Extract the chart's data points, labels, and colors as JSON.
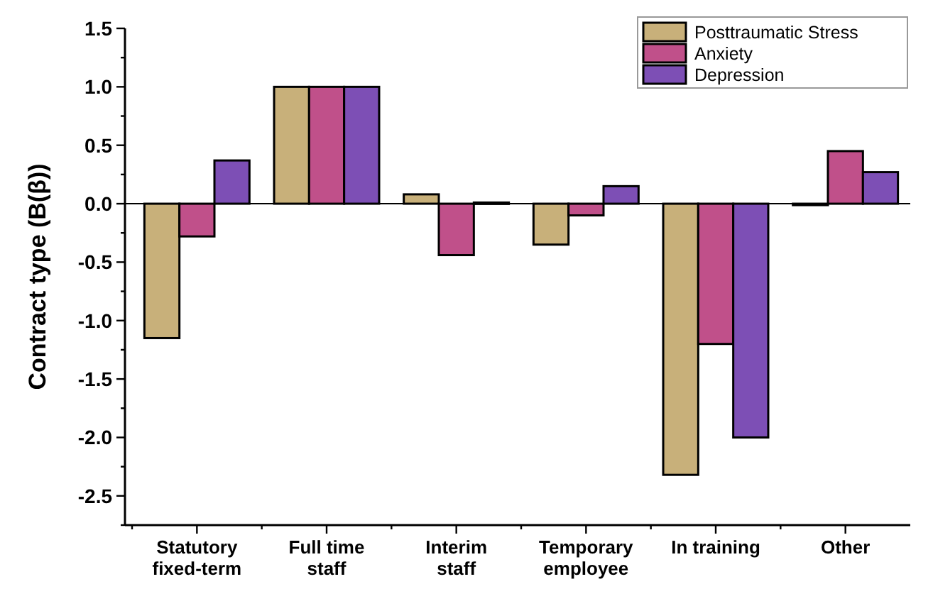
{
  "chart_data": {
    "type": "bar",
    "ylabel": "Contract type (B(β))",
    "categories": [
      "Statutory\nfixed-term",
      "Full time\nstaff",
      "Interim\nstaff",
      "Temporary\nemployee",
      "In training",
      "Other"
    ],
    "series": [
      {
        "name": "Posttraumatic Stress",
        "color": "#c8b07a",
        "values": [
          -1.15,
          1,
          0.08,
          -0.35,
          -2.32,
          -0.01
        ]
      },
      {
        "name": "Anxiety",
        "color": "#c0508a",
        "values": [
          -0.28,
          1,
          -0.44,
          -0.1,
          -1.2,
          0.45
        ]
      },
      {
        "name": "Depression",
        "color": "#7d4fb5",
        "values": [
          0.37,
          1,
          0.01,
          0.15,
          -2.0,
          0.27
        ]
      }
    ],
    "ylim": [
      -2.75,
      1.5
    ],
    "yticks": [
      {
        "value": -2.75,
        "label": null
      },
      -2.5,
      {
        "value": -2.25,
        "label": null
      },
      {
        "value": -2,
        "label": "-2.0"
      },
      {
        "value": -1.75,
        "label": null
      },
      -1.5,
      {
        "value": -1.25,
        "label": null
      },
      {
        "value": -1,
        "label": "-1.0"
      },
      {
        "value": -0.75,
        "label": null
      },
      -0.5,
      {
        "value": -0.25,
        "label": null
      },
      {
        "value": 0,
        "label": "0.0"
      },
      {
        "value": 0.25,
        "label": null
      },
      0.5,
      {
        "value": 0.75,
        "label": null
      },
      {
        "value": 1,
        "label": "1.0"
      },
      {
        "value": 1.25,
        "label": null
      },
      1.5
    ],
    "ref_lines": [
      {
        "axis": "y",
        "value": 0,
        "label": null,
        "color": "#000000"
      }
    ],
    "grid": false,
    "legend": "top right"
  }
}
